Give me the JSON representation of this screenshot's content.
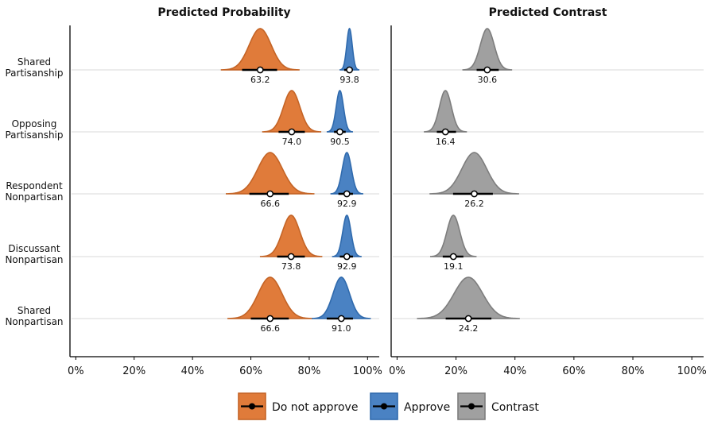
{
  "chart_data": {
    "type": "ridgeline",
    "categories": [
      "Shared Partisanship",
      "Opposing Partisanship",
      "Respondent Nonpartisan",
      "Discussant Nonpartisan",
      "Shared Nonpartisan"
    ],
    "category_lines": [
      [
        "Shared",
        "Partisanship"
      ],
      [
        "Opposing",
        "Partisanship"
      ],
      [
        "Respondent",
        "Nonpartisan"
      ],
      [
        "Discussant",
        "Nonpartisan"
      ],
      [
        "Shared",
        "Nonpartisan"
      ]
    ],
    "panels": [
      {
        "title": "Predicted Probability",
        "xlim": [
          -2,
          104
        ],
        "xticks": [
          0,
          20,
          40,
          60,
          80,
          100
        ],
        "xtick_labels": [
          "0%",
          "20%",
          "40%",
          "60%",
          "80%",
          "100%"
        ],
        "series": [
          {
            "name": "Do not approve",
            "values": [
              63.2,
              74.0,
              66.6,
              73.8,
              66.6
            ],
            "interval": [
              [
                57,
                69
              ],
              [
                69.5,
                78.5
              ],
              [
                59.5,
                73
              ],
              [
                69,
                78.5
              ],
              [
                60,
                73
              ]
            ]
          },
          {
            "name": "Approve",
            "values": [
              93.8,
              90.5,
              92.9,
              92.9,
              91.0
            ],
            "interval": [
              [
                92,
                95
              ],
              [
                88.5,
                92.5
              ],
              [
                90,
                95
              ],
              [
                90.5,
                95
              ],
              [
                86,
                95
              ]
            ]
          }
        ]
      },
      {
        "title": "Predicted Contrast",
        "xlim": [
          -2,
          104
        ],
        "xticks": [
          0,
          20,
          40,
          60,
          80,
          100
        ],
        "xtick_labels": [
          "0%",
          "20%",
          "40%",
          "60%",
          "80%",
          "100%"
        ],
        "series": [
          {
            "name": "Contrast",
            "values": [
              30.6,
              16.4,
              26.2,
              19.1,
              24.2
            ],
            "interval": [
              [
                27,
                34.5
              ],
              [
                13.5,
                20
              ],
              [
                19,
                32.5
              ],
              [
                15.5,
                22.5
              ],
              [
                16.5,
                32
              ]
            ]
          }
        ]
      }
    ],
    "legend": {
      "position": "bottom",
      "entries": [
        "Do not approve",
        "Approve",
        "Contrast"
      ]
    }
  },
  "colors": {
    "Do not approve": {
      "fill": "#e07b3a",
      "stroke": "#c46426"
    },
    "Approve": {
      "fill": "#4a82c3",
      "stroke": "#2f6aad"
    },
    "Contrast": {
      "fill": "#a0a0a0",
      "stroke": "#7d7d7d"
    },
    "baseline": "#e6e6e6",
    "axis": "#000000"
  }
}
